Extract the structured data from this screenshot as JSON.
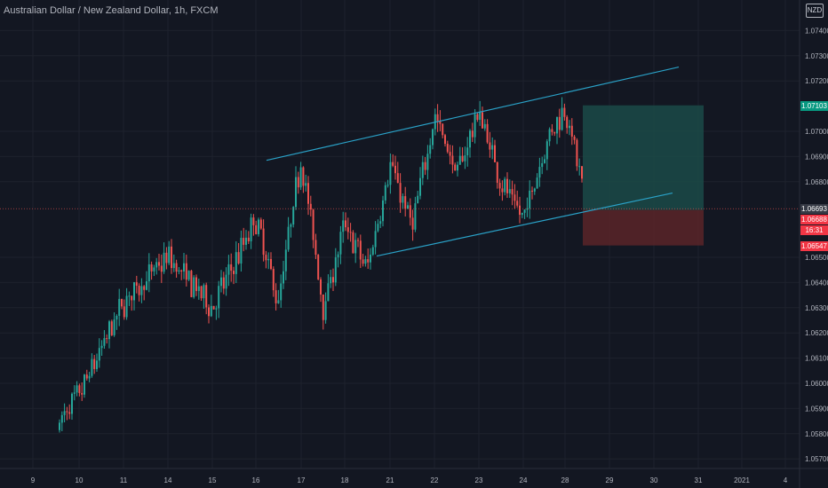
{
  "header": {
    "title": "Australian Dollar / New Zealand Dollar, 1h, FXCM",
    "currency": "NZD"
  },
  "colors": {
    "background": "#131722",
    "up": "#26a69a",
    "down": "#ef5350",
    "channel": "#2aa2c8",
    "target_zone": "#1b4a48",
    "stop_zone": "#5a2428",
    "grid": "#1e222d",
    "axis_text": "#b2b5be"
  },
  "price_tags": {
    "current": {
      "label": "1.06693",
      "bg": "#363a45"
    },
    "target": {
      "label": "1.07103",
      "bg": "#089981"
    },
    "entry": {
      "label": "1.06688",
      "bg": "#f23645"
    },
    "countdown": {
      "label": "16:31",
      "bg": "#f23645"
    },
    "stop": {
      "label": "1.06547",
      "bg": "#f23645"
    }
  },
  "chart_data": {
    "type": "candlestick",
    "symbol": "AUDNZD",
    "timeframe": "1h",
    "y_ticks": [
      "1.07400",
      "1.07300",
      "1.07200",
      "1.07000",
      "1.06900",
      "1.06800",
      "1.06500",
      "1.06400",
      "1.06300",
      "1.06200",
      "1.06100",
      "1.06000",
      "1.05900",
      "1.05800",
      "1.05700"
    ],
    "x_ticks": [
      "9",
      "10",
      "11",
      "14",
      "15",
      "16",
      "17",
      "18",
      "21",
      "22",
      "23",
      "24",
      "28",
      "29",
      "30",
      "31",
      "2021",
      "4"
    ],
    "ylim": [
      1.0565,
      1.0745
    ],
    "anchor_points": [
      {
        "date": "9",
        "price": 1.057
      },
      {
        "date": "10",
        "price": 1.0595
      },
      {
        "date": "11",
        "price": 1.0632
      },
      {
        "date": "14",
        "price": 1.065
      },
      {
        "date": "15",
        "price": 1.063
      },
      {
        "date": "16",
        "price": 1.0665
      },
      {
        "date": "16",
        "price": 1.0632
      },
      {
        "date": "17",
        "price": 1.069
      },
      {
        "date": "17",
        "price": 1.063
      },
      {
        "date": "18",
        "price": 1.0663
      },
      {
        "date": "18",
        "price": 1.0645
      },
      {
        "date": "21",
        "price": 1.0687
      },
      {
        "date": "21",
        "price": 1.0662
      },
      {
        "date": "22",
        "price": 1.0707
      },
      {
        "date": "22",
        "price": 1.0683
      },
      {
        "date": "23",
        "price": 1.0708
      },
      {
        "date": "23",
        "price": 1.068
      },
      {
        "date": "24",
        "price": 1.0665
      },
      {
        "date": "24",
        "price": 1.0695
      },
      {
        "date": "28",
        "price": 1.071
      },
      {
        "date": "28",
        "price": 1.0669
      }
    ],
    "channel": {
      "upper": [
        {
          "date": "16",
          "price": 1.06885
        },
        {
          "date": "30",
          "price": 1.07255
        }
      ],
      "lower": [
        {
          "date": "20",
          "price": 1.06505
        },
        {
          "date": "30",
          "price": 1.06755
        }
      ]
    },
    "position": {
      "entry": 1.06688,
      "target": 1.07103,
      "stop": 1.06547,
      "start_date": "28",
      "end_date": "31"
    },
    "current_price": 1.06693,
    "grid": true
  }
}
